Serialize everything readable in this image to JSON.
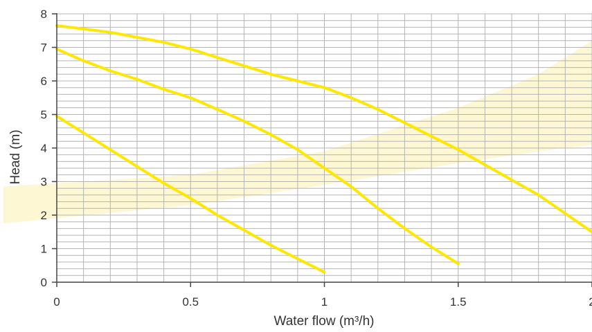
{
  "chart_data": {
    "type": "line",
    "xlabel": "Water flow (m³/h)",
    "ylabel": "Head (m)",
    "xlim": [
      0,
      2
    ],
    "ylim": [
      0,
      8
    ],
    "xticks": [
      0,
      0.5,
      1,
      1.5,
      2
    ],
    "xtick_labels": [
      "0",
      "0.5",
      "1",
      "1.5",
      "2"
    ],
    "yticks": [
      0,
      1,
      2,
      3,
      4,
      5,
      6,
      7,
      8
    ],
    "ytick_labels": [
      "0",
      "1",
      "2",
      "3",
      "4",
      "5",
      "6",
      "7",
      "8"
    ],
    "grid": true,
    "minor_grid": {
      "x_step": 0.1,
      "y_step": 0.2
    },
    "series": [
      {
        "points": [
          [
            0,
            4.95
          ],
          [
            0.1,
            4.45
          ],
          [
            0.2,
            3.95
          ],
          [
            0.3,
            3.45
          ],
          [
            0.4,
            2.95
          ],
          [
            0.5,
            2.5
          ],
          [
            0.6,
            2.0
          ],
          [
            0.7,
            1.55
          ],
          [
            0.8,
            1.1
          ],
          [
            0.9,
            0.7
          ],
          [
            1.0,
            0.3
          ]
        ]
      },
      {
        "points": [
          [
            0,
            6.95
          ],
          [
            0.1,
            6.6
          ],
          [
            0.2,
            6.3
          ],
          [
            0.3,
            6.05
          ],
          [
            0.4,
            5.75
          ],
          [
            0.5,
            5.5
          ],
          [
            0.6,
            5.15
          ],
          [
            0.7,
            4.8
          ],
          [
            0.8,
            4.4
          ],
          [
            0.9,
            3.95
          ],
          [
            1.0,
            3.4
          ],
          [
            1.1,
            2.85
          ],
          [
            1.2,
            2.2
          ],
          [
            1.3,
            1.6
          ],
          [
            1.4,
            1.05
          ],
          [
            1.5,
            0.55
          ]
        ]
      },
      {
        "points": [
          [
            0,
            7.65
          ],
          [
            0.2,
            7.45
          ],
          [
            0.4,
            7.15
          ],
          [
            0.5,
            6.95
          ],
          [
            0.6,
            6.7
          ],
          [
            0.7,
            6.45
          ],
          [
            0.8,
            6.2
          ],
          [
            0.9,
            6.0
          ],
          [
            1.0,
            5.8
          ],
          [
            1.1,
            5.5
          ],
          [
            1.2,
            5.15
          ],
          [
            1.3,
            4.75
          ],
          [
            1.4,
            4.35
          ],
          [
            1.5,
            3.95
          ],
          [
            1.6,
            3.5
          ],
          [
            1.7,
            3.05
          ],
          [
            1.8,
            2.6
          ],
          [
            1.9,
            2.05
          ],
          [
            2.0,
            1.5
          ]
        ]
      }
    ],
    "shaded_band": {
      "upper": [
        [
          -0.2,
          2.85
        ],
        [
          0.5,
          3.2
        ],
        [
          1.0,
          3.9
        ],
        [
          1.5,
          5.2
        ],
        [
          1.8,
          6.2
        ],
        [
          2.0,
          7.2
        ]
      ],
      "lower": [
        [
          -0.2,
          1.75
        ],
        [
          0.5,
          2.3
        ],
        [
          1.0,
          2.9
        ],
        [
          1.5,
          3.55
        ],
        [
          1.8,
          3.9
        ],
        [
          2.0,
          4.1
        ]
      ]
    },
    "colors": {
      "curve": "#ffe800",
      "band": "#fdf7d3",
      "grid": "#b4b4b4",
      "axis": "#444444",
      "text": "#333333"
    }
  }
}
